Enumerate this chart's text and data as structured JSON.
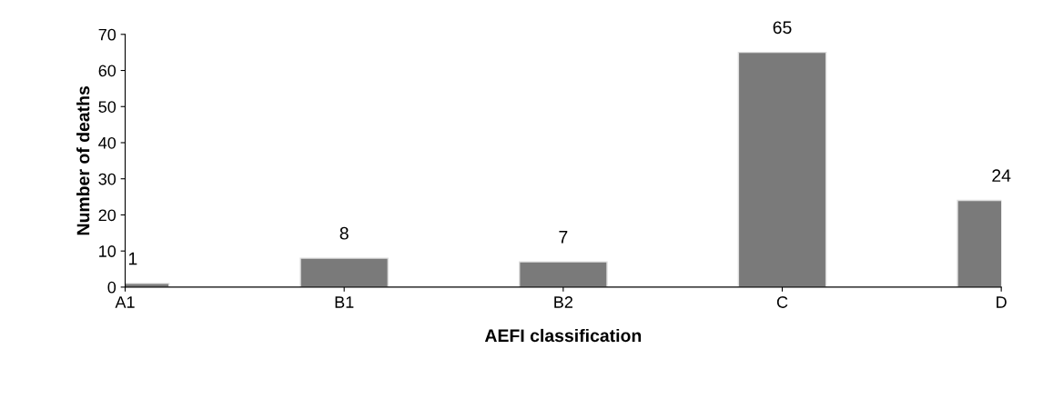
{
  "chart_data": {
    "type": "bar",
    "xlabel": "AEFI classification",
    "ylabel": "Number of deaths",
    "categories": [
      "A1",
      "B1",
      "B2",
      "C",
      "D"
    ],
    "values": [
      1,
      8,
      7,
      65,
      24
    ],
    "color": "#7a7a7a",
    "ylim": [
      0,
      70
    ],
    "yticks": [
      0,
      10,
      20,
      30,
      40,
      50,
      60,
      70
    ],
    "grid": false,
    "data_labels": true
  }
}
